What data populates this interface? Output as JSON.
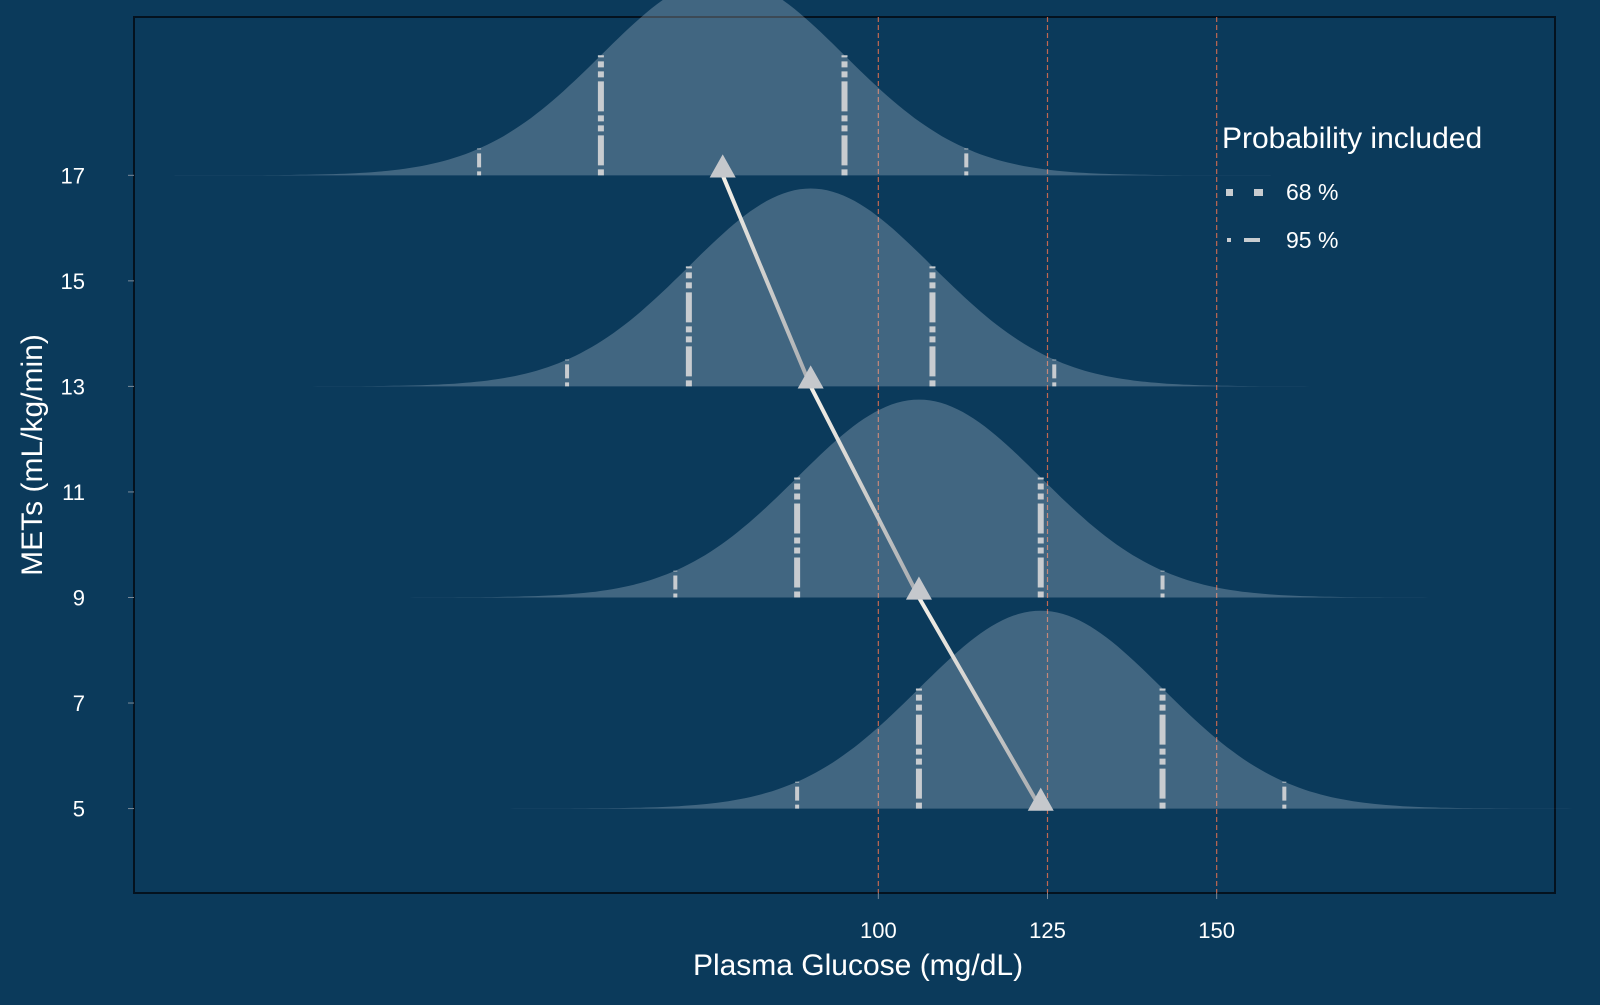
{
  "chart_data": {
    "type": "area",
    "chart_kind": "ridgeline-normal-distributions",
    "xlabel": "Plasma Glucose (mg/dL)",
    "ylabel": "METs (mL/kg/min)",
    "x_ticks": [
      100,
      125,
      150
    ],
    "y_ticks": [
      5,
      7,
      9,
      11,
      13,
      15,
      17
    ],
    "xlim": [
      -10,
      200
    ],
    "ylim": [
      3.4,
      20.0
    ],
    "reference_lines_x": [
      100,
      125,
      150
    ],
    "distributions": [
      {
        "mets": 5,
        "mean": 124,
        "sd": 18,
        "peak_height": 7.5
      },
      {
        "mets": 9,
        "mean": 106,
        "sd": 18,
        "peak_height": 7.5
      },
      {
        "mets": 13,
        "mean": 90,
        "sd": 18,
        "peak_height": 7.5
      },
      {
        "mets": 17,
        "mean": 77,
        "sd": 18,
        "peak_height": 7.5
      }
    ],
    "legend": {
      "title": "Probability included",
      "position": "top-right",
      "items": [
        {
          "label": "68 %",
          "style": "dashed"
        },
        {
          "label": "95 %",
          "style": "dotted"
        }
      ]
    },
    "colors": {
      "background": "#0b3a5b",
      "panel_border": "#04121f",
      "density_fill": "#cfdbe5",
      "interval_marks": "#c8ccd0",
      "reference_line": "#e07050",
      "trend_line": "#f4f0e8",
      "marker": "#c5c8cc",
      "text": "#ffffff"
    }
  }
}
